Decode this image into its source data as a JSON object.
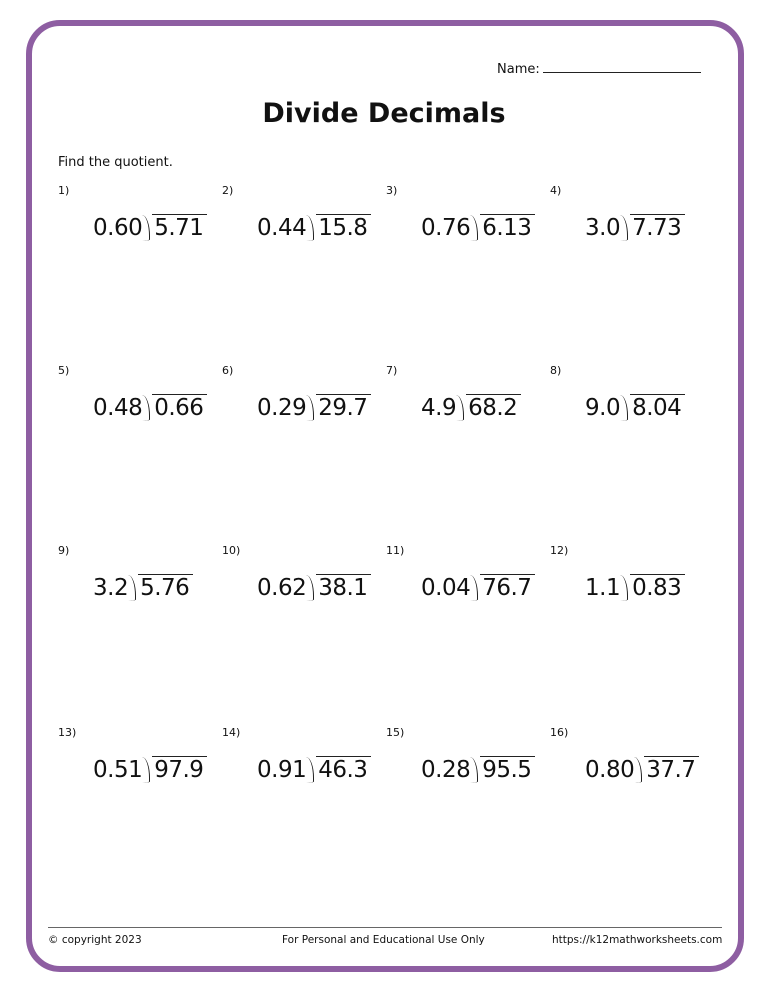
{
  "header": {
    "name_label": "Name:",
    "title": "Divide Decimals",
    "instructions": "Find the quotient."
  },
  "accent_color": "#8e5ea2",
  "problems": [
    {
      "number": "1)",
      "divisor": "0.60",
      "dividend": "5.71"
    },
    {
      "number": "2)",
      "divisor": "0.44",
      "dividend": "15.8"
    },
    {
      "number": "3)",
      "divisor": "0.76",
      "dividend": "6.13"
    },
    {
      "number": "4)",
      "divisor": "3.0",
      "dividend": "7.73"
    },
    {
      "number": "5)",
      "divisor": "0.48",
      "dividend": "0.66"
    },
    {
      "number": "6)",
      "divisor": "0.29",
      "dividend": "29.7"
    },
    {
      "number": "7)",
      "divisor": "4.9",
      "dividend": "68.2"
    },
    {
      "number": "8)",
      "divisor": "9.0",
      "dividend": "8.04"
    },
    {
      "number": "9)",
      "divisor": "3.2",
      "dividend": "5.76"
    },
    {
      "number": "10)",
      "divisor": "0.62",
      "dividend": "38.1"
    },
    {
      "number": "11)",
      "divisor": "0.04",
      "dividend": "76.7"
    },
    {
      "number": "12)",
      "divisor": "1.1",
      "dividend": "0.83"
    },
    {
      "number": "13)",
      "divisor": "0.51",
      "dividend": "97.9"
    },
    {
      "number": "14)",
      "divisor": "0.91",
      "dividend": "46.3"
    },
    {
      "number": "15)",
      "divisor": "0.28",
      "dividend": "95.5"
    },
    {
      "number": "16)",
      "divisor": "0.80",
      "dividend": "37.7"
    }
  ],
  "footer": {
    "copyright": "© copyright 2023",
    "notice": "For Personal and Educational Use Only",
    "url": "https://k12mathworksheets.com"
  }
}
